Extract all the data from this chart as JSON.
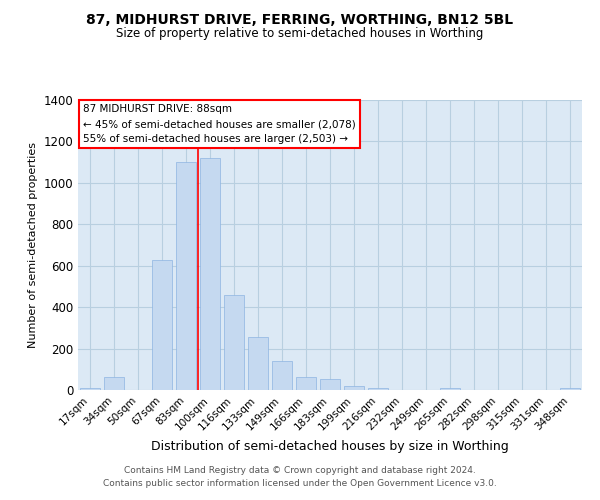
{
  "title_line1": "87, MIDHURST DRIVE, FERRING, WORTHING, BN12 5BL",
  "title_line2": "Size of property relative to semi-detached houses in Worthing",
  "xlabel": "Distribution of semi-detached houses by size in Worthing",
  "ylabel": "Number of semi-detached properties",
  "categories": [
    "17sqm",
    "34sqm",
    "50sqm",
    "67sqm",
    "83sqm",
    "100sqm",
    "116sqm",
    "133sqm",
    "149sqm",
    "166sqm",
    "183sqm",
    "199sqm",
    "216sqm",
    "232sqm",
    "249sqm",
    "265sqm",
    "282sqm",
    "298sqm",
    "315sqm",
    "331sqm",
    "348sqm"
  ],
  "values": [
    10,
    65,
    0,
    630,
    1100,
    1120,
    460,
    255,
    140,
    65,
    55,
    20,
    10,
    0,
    0,
    10,
    0,
    0,
    0,
    0,
    10
  ],
  "bar_color": "#c5d9f0",
  "bar_edge_color": "#8db4e2",
  "property_size": "88sqm",
  "pct_smaller": 45,
  "count_smaller": 2078,
  "pct_larger": 55,
  "count_larger": 2503,
  "ylim": [
    0,
    1400
  ],
  "yticks": [
    0,
    200,
    400,
    600,
    800,
    1000,
    1200,
    1400
  ],
  "footer_line1": "Contains HM Land Registry data © Crown copyright and database right 2024.",
  "footer_line2": "Contains public sector information licensed under the Open Government Licence v3.0.",
  "background_color": "#ffffff",
  "ax_background_color": "#dce9f5",
  "grid_color": "#b8cfe0",
  "red_line_x": 4.5
}
